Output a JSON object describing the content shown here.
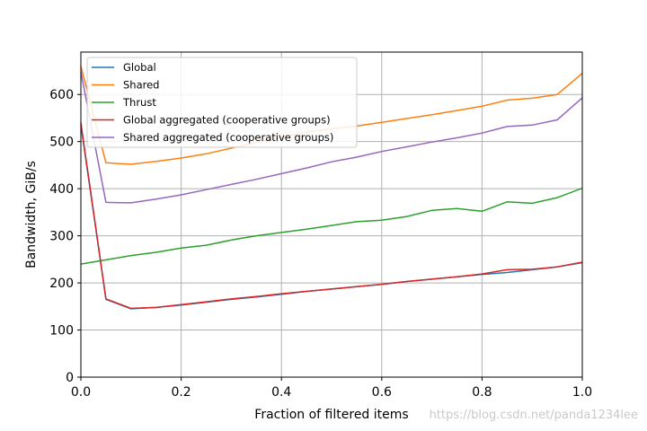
{
  "chart_data": {
    "type": "line",
    "title": "",
    "xlabel": "Fraction of filtered items",
    "ylabel": "Bandwidth, GiB/s",
    "xlim": [
      0,
      1
    ],
    "ylim": [
      0,
      690
    ],
    "xticks": [
      0.0,
      0.2,
      0.4,
      0.6,
      0.8,
      1.0
    ],
    "xtick_labels": [
      "0.0",
      "0.2",
      "0.4",
      "0.6",
      "0.8",
      "1.0"
    ],
    "yticks": [
      0,
      100,
      200,
      300,
      400,
      500,
      600
    ],
    "ytick_labels": [
      "0",
      "100",
      "200",
      "300",
      "400",
      "500",
      "600"
    ],
    "grid": true,
    "legend_position": "top-left",
    "x": [
      0.0,
      0.05,
      0.1,
      0.15,
      0.2,
      0.25,
      0.3,
      0.35,
      0.4,
      0.45,
      0.5,
      0.55,
      0.6,
      0.65,
      0.7,
      0.75,
      0.8,
      0.85,
      0.9,
      0.95,
      1.0
    ],
    "series": [
      {
        "name": "Global",
        "color": "#1f77b4",
        "values": [
          535,
          165,
          145,
          148,
          153,
          159,
          165,
          170,
          176,
          182,
          187,
          192,
          197,
          203,
          208,
          213,
          218,
          222,
          228,
          234,
          243
        ]
      },
      {
        "name": "Shared",
        "color": "#ff7f0e",
        "values": [
          660,
          455,
          452,
          458,
          465,
          474,
          486,
          498,
          509,
          520,
          527,
          533,
          541,
          549,
          557,
          566,
          575,
          588,
          592,
          600,
          645
        ]
      },
      {
        "name": "Thrust",
        "color": "#2ca02c",
        "values": [
          240,
          249,
          258,
          265,
          274,
          280,
          291,
          300,
          307,
          314,
          322,
          330,
          333,
          341,
          354,
          358,
          352,
          372,
          369,
          381,
          401
        ]
      },
      {
        "name": "Global aggregated (cooperative groups)",
        "color": "#d62728",
        "values": [
          540,
          166,
          146,
          148,
          154,
          160,
          166,
          171,
          177,
          182,
          187,
          192,
          197,
          203,
          208,
          213,
          219,
          228,
          229,
          234,
          244
        ]
      },
      {
        "name": "Shared aggregated (cooperative groups)",
        "color": "#9467bd",
        "values": [
          648,
          371,
          370,
          378,
          387,
          398,
          409,
          420,
          432,
          444,
          457,
          467,
          479,
          489,
          499,
          508,
          518,
          532,
          535,
          546,
          593
        ]
      }
    ]
  },
  "watermark": "https://blog.csdn.net/panda1234lee"
}
